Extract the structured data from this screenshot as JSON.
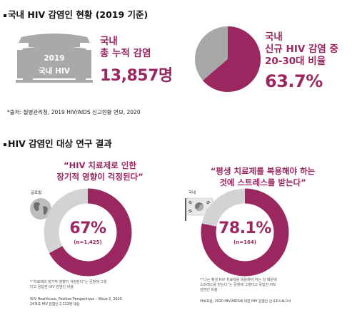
{
  "section1": {
    "title": "국내 HIV 감염인 현황 (2019 기준)",
    "badge_year": "2019",
    "badge_label": "국내 HIV",
    "cumulative_label_1": "국내",
    "cumulative_label_2": "총 누적 감염",
    "cumulative_value": "13,857명",
    "new_label_1": "국내",
    "new_label_2": "신규 HIV 감염 중",
    "new_label_3": "20-30대 비율",
    "new_value": "63.7%",
    "pie_fraction": 0.637,
    "source": "*출처: 질병관리청, 2019 HIV/AIDS 신고현황 연보, 2020"
  },
  "section2": {
    "title": "HIV 감염인 대상 연구 결과",
    "left": {
      "quote_1": "“HIV 치료제로 인한",
      "quote_2": "장기적 영향이 걱정된다”",
      "icon_label": "글로벌",
      "percent": "67%",
      "n": "(n=1,425)",
      "fraction": 0.67,
      "note_1": "*“치료제의 장기적 영향이 걱정된다”는 문항에 그렇",
      "note_2": "다고 응답한 HIV 감염인 비율",
      "source_1": "ViiV Healthcare, Positive Perspectives – Wave 2, 2020,",
      "source_2": "24개국 HIV 감염인 2,112명 대상"
    },
    "right": {
      "quote_1": "“평생 치료제를 복용해야 하는",
      "quote_2": "것에 스트레스를 받는다”",
      "icon_label": "국내",
      "percent": "78.1%",
      "n": "(n=164)",
      "fraction": 0.781,
      "note_1": "*“나는 평생 HIV 치료제를 복용해야 하는 것 때문에",
      "note_2": "스트레스를 받는다”는 문항에 그렇다고 응답한 HIV",
      "note_3": "감염인 비율",
      "source_1": "러브포원, 2020 HIV/AIDS에 대한 HIV 감염인 인식조사보고서"
    }
  },
  "colors": {
    "accent": "#9b2760",
    "gray": "#a8a8a8",
    "light_gray": "#d6d6d6"
  }
}
